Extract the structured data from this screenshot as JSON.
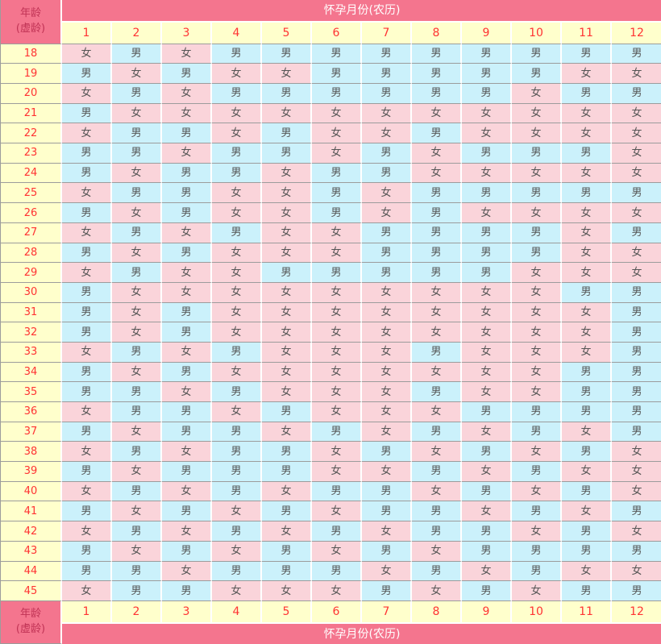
{
  "colors": {
    "header_pink": "#F4758E",
    "cell_pink": "#FAD4DA",
    "cell_blue": "#CBF1FB",
    "age_yellow": "#FFFFCC",
    "number_red": "#FF3333",
    "header_text": "#FFFFFF",
    "corner_text": "#C03355",
    "cell_text": "#555555",
    "grid_line_gray": "#9C9C9C",
    "grid_line_white": "#FFFFFF"
  },
  "chart_data": {
    "type": "table",
    "title": "怀孕月份(农历)",
    "row_header_line1": "年龄",
    "row_header_line2": "(虚龄)",
    "male_label": "男",
    "female_label": "女",
    "columns": [
      "1",
      "2",
      "3",
      "4",
      "5",
      "6",
      "7",
      "8",
      "9",
      "10",
      "11",
      "12"
    ],
    "rows": [
      {
        "age": "18",
        "values": [
          "女",
          "男",
          "女",
          "男",
          "男",
          "男",
          "男",
          "男",
          "男",
          "男",
          "男",
          "男"
        ]
      },
      {
        "age": "19",
        "values": [
          "男",
          "女",
          "男",
          "女",
          "女",
          "男",
          "男",
          "男",
          "男",
          "男",
          "女",
          "女"
        ]
      },
      {
        "age": "20",
        "values": [
          "女",
          "男",
          "女",
          "男",
          "男",
          "男",
          "男",
          "男",
          "男",
          "女",
          "男",
          "男"
        ]
      },
      {
        "age": "21",
        "values": [
          "男",
          "女",
          "女",
          "女",
          "女",
          "女",
          "女",
          "女",
          "女",
          "女",
          "女",
          "女"
        ]
      },
      {
        "age": "22",
        "values": [
          "女",
          "男",
          "男",
          "女",
          "男",
          "女",
          "女",
          "男",
          "女",
          "女",
          "女",
          "女"
        ]
      },
      {
        "age": "23",
        "values": [
          "男",
          "男",
          "女",
          "男",
          "男",
          "女",
          "男",
          "女",
          "男",
          "男",
          "男",
          "女"
        ]
      },
      {
        "age": "24",
        "values": [
          "男",
          "女",
          "男",
          "男",
          "女",
          "男",
          "男",
          "女",
          "女",
          "女",
          "女",
          "女"
        ]
      },
      {
        "age": "25",
        "values": [
          "女",
          "男",
          "男",
          "女",
          "女",
          "男",
          "女",
          "男",
          "男",
          "男",
          "男",
          "男"
        ]
      },
      {
        "age": "26",
        "values": [
          "男",
          "女",
          "男",
          "女",
          "女",
          "男",
          "女",
          "男",
          "女",
          "女",
          "女",
          "女"
        ]
      },
      {
        "age": "27",
        "values": [
          "女",
          "男",
          "女",
          "男",
          "女",
          "女",
          "男",
          "男",
          "男",
          "男",
          "女",
          "男"
        ]
      },
      {
        "age": "28",
        "values": [
          "男",
          "女",
          "男",
          "女",
          "女",
          "女",
          "男",
          "男",
          "男",
          "男",
          "女",
          "女"
        ]
      },
      {
        "age": "29",
        "values": [
          "女",
          "男",
          "女",
          "女",
          "男",
          "男",
          "男",
          "男",
          "男",
          "女",
          "女",
          "女"
        ]
      },
      {
        "age": "30",
        "values": [
          "男",
          "女",
          "女",
          "女",
          "女",
          "女",
          "女",
          "女",
          "女",
          "女",
          "男",
          "男"
        ]
      },
      {
        "age": "31",
        "values": [
          "男",
          "女",
          "男",
          "女",
          "女",
          "女",
          "女",
          "女",
          "女",
          "女",
          "女",
          "男"
        ]
      },
      {
        "age": "32",
        "values": [
          "男",
          "女",
          "男",
          "女",
          "女",
          "女",
          "女",
          "女",
          "女",
          "女",
          "女",
          "男"
        ]
      },
      {
        "age": "33",
        "values": [
          "女",
          "男",
          "女",
          "男",
          "女",
          "女",
          "女",
          "男",
          "女",
          "女",
          "女",
          "男"
        ]
      },
      {
        "age": "34",
        "values": [
          "男",
          "女",
          "男",
          "女",
          "女",
          "女",
          "女",
          "女",
          "女",
          "女",
          "男",
          "男"
        ]
      },
      {
        "age": "35",
        "values": [
          "男",
          "男",
          "女",
          "男",
          "女",
          "女",
          "女",
          "男",
          "女",
          "女",
          "男",
          "男"
        ]
      },
      {
        "age": "36",
        "values": [
          "女",
          "男",
          "男",
          "女",
          "男",
          "女",
          "女",
          "女",
          "男",
          "男",
          "男",
          "男"
        ]
      },
      {
        "age": "37",
        "values": [
          "男",
          "女",
          "男",
          "男",
          "女",
          "男",
          "女",
          "男",
          "女",
          "男",
          "女",
          "男"
        ]
      },
      {
        "age": "38",
        "values": [
          "女",
          "男",
          "女",
          "男",
          "男",
          "女",
          "男",
          "女",
          "男",
          "女",
          "男",
          "女"
        ]
      },
      {
        "age": "39",
        "values": [
          "男",
          "女",
          "男",
          "男",
          "男",
          "女",
          "女",
          "男",
          "女",
          "男",
          "女",
          "女"
        ]
      },
      {
        "age": "40",
        "values": [
          "女",
          "男",
          "女",
          "男",
          "女",
          "男",
          "男",
          "女",
          "男",
          "女",
          "男",
          "女"
        ]
      },
      {
        "age": "41",
        "values": [
          "男",
          "女",
          "男",
          "女",
          "男",
          "女",
          "男",
          "男",
          "女",
          "男",
          "女",
          "男"
        ]
      },
      {
        "age": "42",
        "values": [
          "女",
          "男",
          "女",
          "男",
          "女",
          "男",
          "女",
          "男",
          "男",
          "女",
          "男",
          "女"
        ]
      },
      {
        "age": "43",
        "values": [
          "男",
          "女",
          "男",
          "女",
          "男",
          "女",
          "男",
          "女",
          "男",
          "男",
          "男",
          "男"
        ]
      },
      {
        "age": "44",
        "values": [
          "男",
          "男",
          "女",
          "男",
          "男",
          "男",
          "女",
          "男",
          "女",
          "男",
          "女",
          "女"
        ]
      },
      {
        "age": "45",
        "values": [
          "女",
          "男",
          "男",
          "女",
          "女",
          "女",
          "男",
          "女",
          "男",
          "女",
          "男",
          "男"
        ]
      }
    ]
  }
}
